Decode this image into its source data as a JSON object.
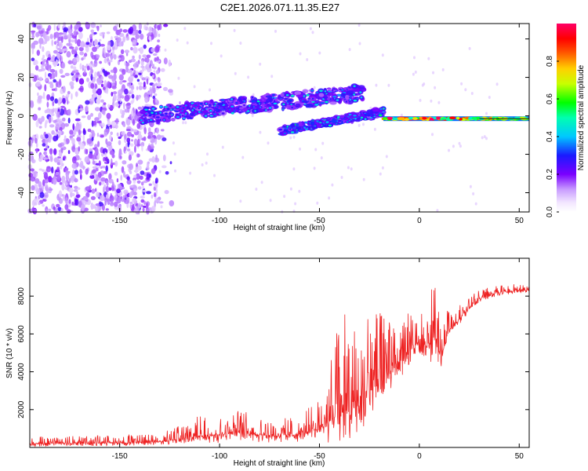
{
  "title": "C2E1.2026.071.11.35.E27",
  "chart_data": [
    {
      "type": "heatmap",
      "name": "spectrogram",
      "title": "C2E1.2026.071.11.35.E27",
      "xlabel": "Height of straight line (km)",
      "ylabel": "Frequency (Hz)",
      "xlim": [
        -195,
        55
      ],
      "ylim": [
        -50,
        48
      ],
      "xticks": [
        -150,
        -100,
        -50,
        0,
        50
      ],
      "yticks": [
        -40,
        -20,
        0,
        20,
        40
      ],
      "colorbar": {
        "label": "Normalized spectral amplitude",
        "range": [
          0,
          1
        ],
        "ticks": [
          "0.0",
          "0.2",
          "0.4",
          "0.6",
          "0.8"
        ],
        "colormap": "rainbow (white-purple-blue-cyan-green-yellow-red-magenta)"
      },
      "features": [
        {
          "name": "noise field",
          "x_range": [
            -195,
            -130
          ],
          "freq_range": [
            -50,
            48
          ],
          "amplitude": 0.1
        },
        {
          "name": "upper branch",
          "x_start": -140,
          "x_end": -28,
          "freq_start": 0,
          "freq_end": 12,
          "amplitude": 0.4
        },
        {
          "name": "lower branch",
          "x_start": -70,
          "x_end": -18,
          "freq_start": -8,
          "freq_end": 2,
          "amplitude": 0.45
        },
        {
          "name": "carrier line",
          "x_start": -18,
          "x_end": 55,
          "freq": -1.5,
          "amplitude": 0.85
        }
      ]
    },
    {
      "type": "line",
      "name": "snr",
      "xlabel": "Height of straight line (km)",
      "ylabel": "SNR (10 * v/v)",
      "xlim": [
        -195,
        55
      ],
      "ylim": [
        0,
        10000
      ],
      "xticks": [
        -150,
        -100,
        -50,
        0,
        50
      ],
      "yticks": [
        2000,
        4000,
        6000,
        8000
      ],
      "color": "#ee2222",
      "envelope_x": [
        -195,
        -150,
        -130,
        -110,
        -90,
        -75,
        -60,
        -50,
        -45,
        -40,
        -35,
        -30,
        -25,
        -20,
        -15,
        -10,
        -5,
        0,
        5,
        8,
        10,
        12,
        15,
        20,
        25,
        30,
        40,
        50,
        55
      ],
      "envelope_base": [
        200,
        250,
        300,
        600,
        800,
        600,
        700,
        1000,
        1400,
        1800,
        2000,
        2600,
        3000,
        3400,
        4000,
        4600,
        5200,
        5600,
        5300,
        6000,
        4800,
        5200,
        6200,
        6800,
        7400,
        7900,
        8200,
        8300,
        8300
      ],
      "envelope_spread": [
        400,
        400,
        400,
        1100,
        1200,
        900,
        1000,
        1600,
        3000,
        5500,
        4800,
        4500,
        4800,
        3800,
        3200,
        2600,
        2000,
        1500,
        2200,
        3800,
        2600,
        1800,
        1200,
        800,
        600,
        500,
        400,
        350,
        350
      ]
    }
  ]
}
